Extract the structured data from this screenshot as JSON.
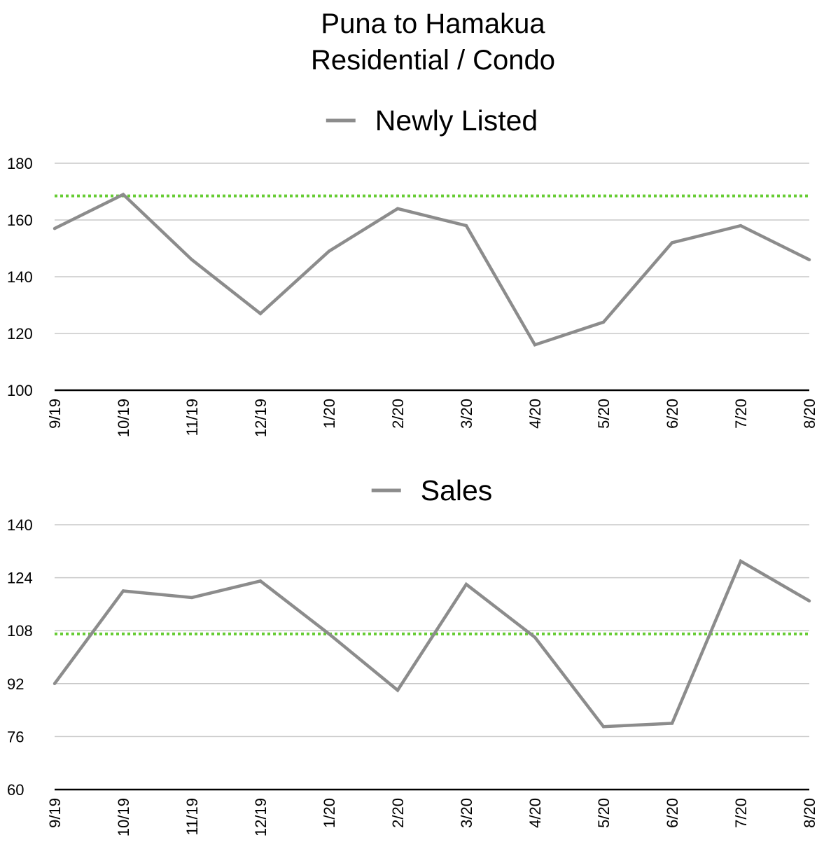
{
  "title": "Puna to Hamakua",
  "subtitle": "Residential / Condo",
  "chart_data": [
    {
      "type": "line",
      "title": "Puna to Hamakua Residential / Condo",
      "legend": "top-center",
      "grid": true,
      "categories": [
        "9/19",
        "10/19",
        "11/19",
        "12/19",
        "1/20",
        "2/20",
        "3/20",
        "4/20",
        "5/20",
        "6/20",
        "7/20",
        "8/20"
      ],
      "series": [
        {
          "name": "Newly Listed",
          "color": "#8c8c8c",
          "values": [
            157,
            169,
            146,
            127,
            149,
            164,
            158,
            116,
            124,
            152,
            158,
            146
          ]
        }
      ],
      "reference_line": {
        "value": 168.5,
        "color": "#66cc33",
        "style": "dotted"
      },
      "ylim": [
        100,
        180
      ],
      "yticks": [
        100,
        120,
        140,
        160,
        180
      ],
      "xlabel": "",
      "ylabel": ""
    },
    {
      "type": "line",
      "legend": "top-center",
      "grid": true,
      "categories": [
        "9/19",
        "10/19",
        "11/19",
        "12/19",
        "1/20",
        "2/20",
        "3/20",
        "4/20",
        "5/20",
        "6/20",
        "7/20",
        "8/20"
      ],
      "series": [
        {
          "name": "Sales",
          "color": "#8c8c8c",
          "values": [
            92,
            120,
            118,
            123,
            107,
            90,
            122,
            106,
            79,
            80,
            129,
            117
          ]
        }
      ],
      "reference_line": {
        "value": 107,
        "color": "#66cc33",
        "style": "dotted"
      },
      "ylim": [
        60,
        140
      ],
      "yticks": [
        60,
        76,
        92,
        108,
        124,
        140
      ],
      "xlabel": "",
      "ylabel": ""
    }
  ]
}
